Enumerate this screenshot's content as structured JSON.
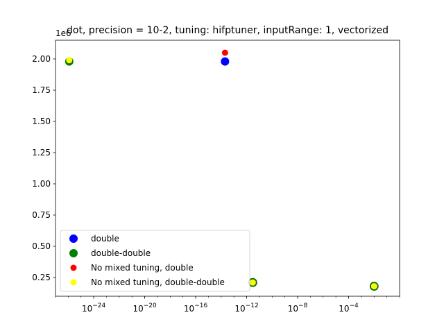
{
  "chart_data": {
    "type": "scatter",
    "title": "dot, precision = 10-2, tuning: hifptuner, inputRange: 1, vectorized",
    "xlabel": "",
    "ylabel": "",
    "xscale": "log",
    "xlim": [
      1e-27,
      1.0
    ],
    "ylim": [
      100000.0,
      2150000.0
    ],
    "y_offset_label": "1e6",
    "grid": false,
    "legend_position": "lower-left",
    "xticks": [
      {
        "value": 1e-24,
        "base": "10",
        "exp": "−24"
      },
      {
        "value": 1e-20,
        "base": "10",
        "exp": "−20"
      },
      {
        "value": 1e-16,
        "base": "10",
        "exp": "−16"
      },
      {
        "value": 1e-12,
        "base": "10",
        "exp": "−12"
      },
      {
        "value": 1e-08,
        "base": "10",
        "exp": "−8"
      },
      {
        "value": 0.0001,
        "base": "10",
        "exp": "−4"
      }
    ],
    "yticks": [
      {
        "value": 250000,
        "label": "0.25"
      },
      {
        "value": 500000,
        "label": "0.50"
      },
      {
        "value": 750000,
        "label": "0.75"
      },
      {
        "value": 1000000,
        "label": "1.00"
      },
      {
        "value": 1250000,
        "label": "1.25"
      },
      {
        "value": 1500000,
        "label": "1.50"
      },
      {
        "value": 1750000,
        "label": "1.75"
      },
      {
        "value": 2000000,
        "label": "2.00"
      }
    ],
    "series": [
      {
        "name": "double",
        "color": "#0000ff",
        "marker": "large",
        "points": [
          {
            "x": 2e-14,
            "y": 1980000
          },
          {
            "x": 3e-12,
            "y": 210000
          },
          {
            "x": 0.01,
            "y": 180000
          }
        ]
      },
      {
        "name": "double-double",
        "color": "#008000",
        "marker": "large",
        "points": [
          {
            "x": 1.2e-26,
            "y": 1980000
          },
          {
            "x": 3e-12,
            "y": 210000
          },
          {
            "x": 0.01,
            "y": 180000
          }
        ]
      },
      {
        "name": "No mixed tuning, double",
        "color": "#ff0000",
        "marker": "small",
        "points": [
          {
            "x": 2e-14,
            "y": 2050000
          }
        ]
      },
      {
        "name": "No mixed tuning, double-double",
        "color": "#ffff00",
        "marker": "small",
        "points": [
          {
            "x": 1.2e-26,
            "y": 1990000
          },
          {
            "x": 3e-12,
            "y": 210000
          },
          {
            "x": 0.01,
            "y": 180000
          }
        ]
      }
    ]
  }
}
